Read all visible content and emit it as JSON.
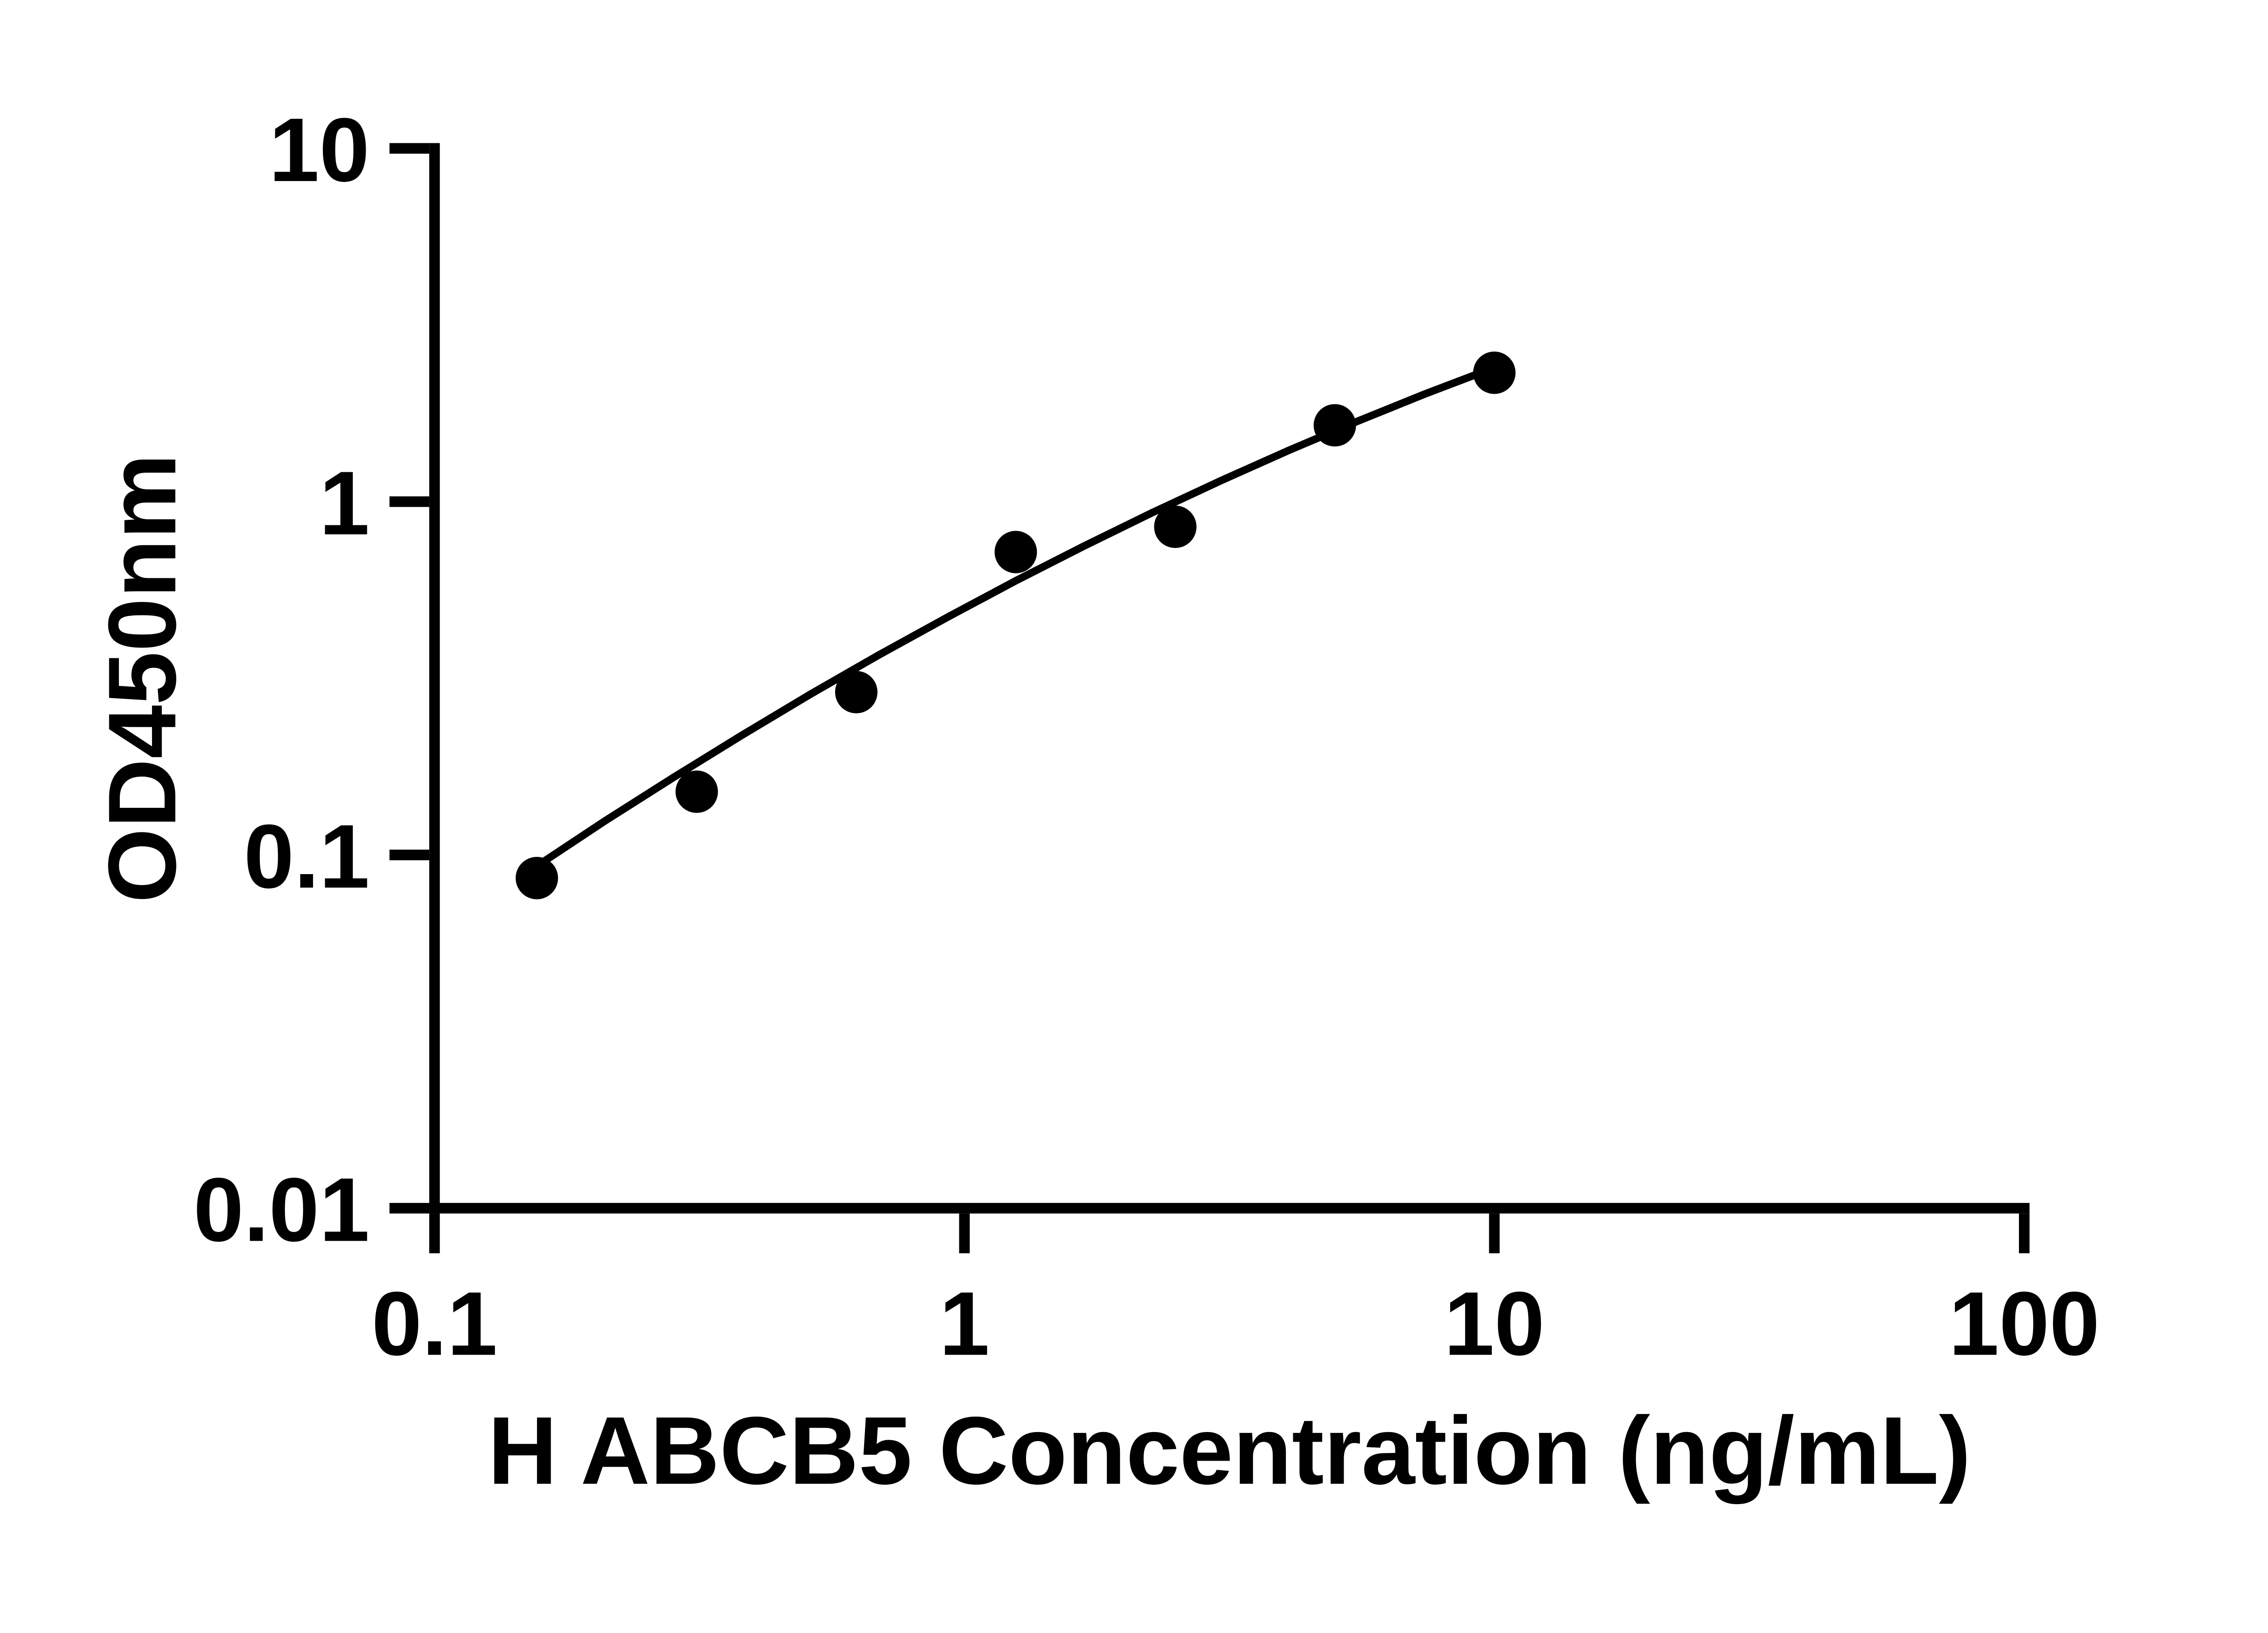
{
  "chart_data": {
    "type": "scatter",
    "title": "",
    "xlabel": "H ABCB5 Concentration (ng/mL)",
    "ylabel": "OD450nm",
    "x_scale": "log",
    "y_scale": "log",
    "xlim": [
      0.1,
      100
    ],
    "ylim": [
      0.01,
      10
    ],
    "grid": false,
    "legend": false,
    "axis_color": "#000000",
    "background_color": "#ffffff",
    "marker_color": "#000000",
    "curve_color": "#000000",
    "x_ticks": [
      {
        "value": 0.1,
        "label": "0.1"
      },
      {
        "value": 1,
        "label": "1"
      },
      {
        "value": 10,
        "label": "10"
      },
      {
        "value": 100,
        "label": "100"
      }
    ],
    "y_ticks": [
      {
        "value": 0.01,
        "label": "0.01"
      },
      {
        "value": 0.1,
        "label": "0.1"
      },
      {
        "value": 1,
        "label": "1"
      },
      {
        "value": 10,
        "label": "10"
      }
    ],
    "series": [
      {
        "name": "standard-curve-points",
        "marker": "circle",
        "color": "#000000",
        "points": [
          {
            "x": 0.156,
            "y": 0.086
          },
          {
            "x": 0.3125,
            "y": 0.151
          },
          {
            "x": 0.625,
            "y": 0.289
          },
          {
            "x": 1.25,
            "y": 0.72
          },
          {
            "x": 2.5,
            "y": 0.849
          },
          {
            "x": 5,
            "y": 1.645
          },
          {
            "x": 10,
            "y": 2.317
          }
        ]
      }
    ],
    "fit_curve": {
      "name": "four-parameter-fit",
      "x": [
        0.156,
        0.21,
        0.283,
        0.38,
        0.512,
        0.689,
        0.927,
        1.247,
        1.679,
        2.259,
        3.041,
        4.093,
        5.508,
        7.413,
        10.0
      ],
      "y": [
        0.093,
        0.125,
        0.166,
        0.218,
        0.285,
        0.368,
        0.47,
        0.596,
        0.748,
        0.93,
        1.145,
        1.397,
        1.687,
        2.02,
        2.396
      ]
    }
  }
}
